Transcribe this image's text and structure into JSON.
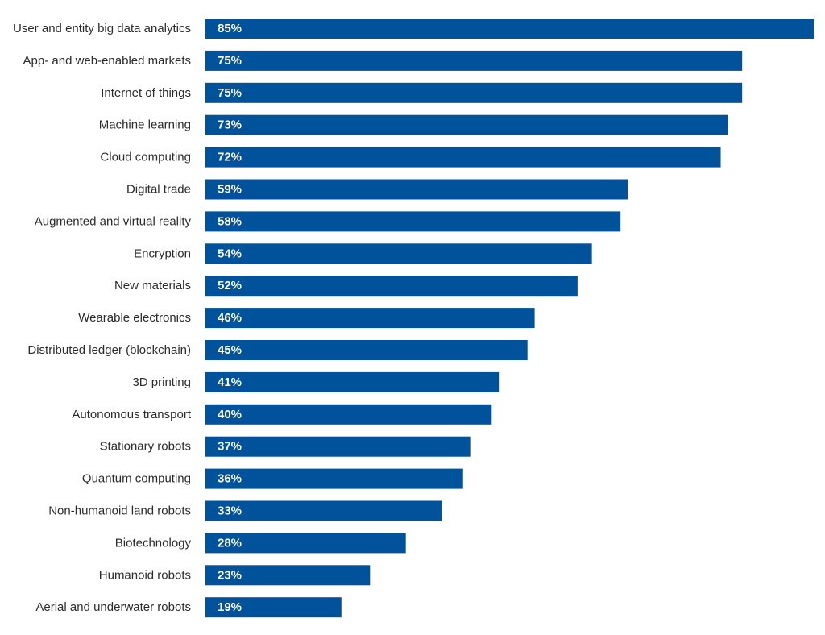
{
  "chart_data": {
    "type": "bar",
    "orientation": "horizontal",
    "categories": [
      "User and entity big data analytics",
      "App- and web-enabled markets",
      "Internet of things",
      "Machine learning",
      "Cloud computing",
      "Digital trade",
      "Augmented and virtual reality",
      "Encryption",
      "New materials",
      "Wearable electronics",
      "Distributed ledger (blockchain)",
      "3D printing",
      "Autonomous transport",
      "Stationary robots",
      "Quantum computing",
      "Non-humanoid land robots",
      "Biotechnology",
      "Humanoid robots",
      "Aerial and underwater robots"
    ],
    "values": [
      85,
      75,
      75,
      73,
      72,
      59,
      58,
      54,
      52,
      46,
      45,
      41,
      40,
      37,
      36,
      33,
      28,
      23,
      19
    ],
    "value_labels": [
      "85%",
      "75%",
      "75%",
      "73%",
      "72%",
      "59%",
      "58%",
      "54%",
      "52%",
      "46%",
      "45%",
      "41%",
      "40%",
      "37%",
      "36%",
      "33%",
      "28%",
      "23%",
      "19%"
    ],
    "unit": "%",
    "xlim": [
      0,
      85
    ],
    "grid": false,
    "legend": "none",
    "bar_color": "#00539b",
    "label_color": "#ffffff",
    "category_label_color": "#2b2b2b"
  }
}
